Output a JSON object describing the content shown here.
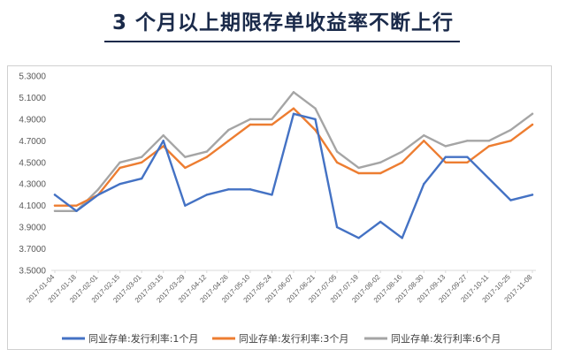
{
  "title": "3 个月以上期限存单收益率不断上行",
  "colors": {
    "s1": "#4472c4",
    "s3": "#ed7d31",
    "s6": "#a5a5a5",
    "axis": "#d9d9d9",
    "title": "#1a2a4a"
  },
  "chart_data": {
    "type": "line",
    "title": "3 个月以上期限存单收益率不断上行",
    "xlabel": "",
    "ylabel": "",
    "ylim": [
      3.5,
      5.3
    ],
    "yticks": [
      "3.5000",
      "3.7000",
      "3.9000",
      "4.1000",
      "4.3000",
      "4.5000",
      "4.7000",
      "4.9000",
      "5.1000",
      "5.3000"
    ],
    "x": [
      "2017-01-04",
      "2017-01-18",
      "2017-02-01",
      "2017-02-15",
      "2017-03-01",
      "2017-03-15",
      "2017-03-29",
      "2017-04-12",
      "2017-04-26",
      "2017-05-10",
      "2017-05-24",
      "2017-06-07",
      "2017-06-21",
      "2017-07-05",
      "2017-07-19",
      "2017-08-02",
      "2017-08-16",
      "2017-08-30",
      "2017-09-13",
      "2017-09-27",
      "2017-10-11",
      "2017-10-25",
      "2017-11-08"
    ],
    "grid": false,
    "legend_position": "bottom",
    "series": [
      {
        "name": "同业存单:发行利率:1个月",
        "values": [
          4.2,
          4.05,
          4.2,
          4.3,
          4.35,
          4.7,
          4.1,
          4.2,
          4.25,
          4.25,
          4.2,
          4.95,
          4.9,
          3.9,
          3.8,
          3.95,
          3.8,
          4.3,
          4.55,
          4.55,
          4.35,
          4.15,
          4.2
        ]
      },
      {
        "name": "同业存单:发行利率:3个月",
        "values": [
          4.1,
          4.1,
          4.2,
          4.45,
          4.5,
          4.65,
          4.45,
          4.55,
          4.7,
          4.85,
          4.85,
          5.0,
          4.8,
          4.5,
          4.4,
          4.4,
          4.5,
          4.7,
          4.5,
          4.5,
          4.65,
          4.7,
          4.85
        ]
      },
      {
        "name": "同业存单:发行利率:6个月",
        "values": [
          4.05,
          4.05,
          4.25,
          4.5,
          4.55,
          4.75,
          4.55,
          4.6,
          4.8,
          4.9,
          4.9,
          5.15,
          5.0,
          4.6,
          4.45,
          4.5,
          4.6,
          4.75,
          4.65,
          4.7,
          4.7,
          4.8,
          4.95
        ]
      }
    ]
  }
}
